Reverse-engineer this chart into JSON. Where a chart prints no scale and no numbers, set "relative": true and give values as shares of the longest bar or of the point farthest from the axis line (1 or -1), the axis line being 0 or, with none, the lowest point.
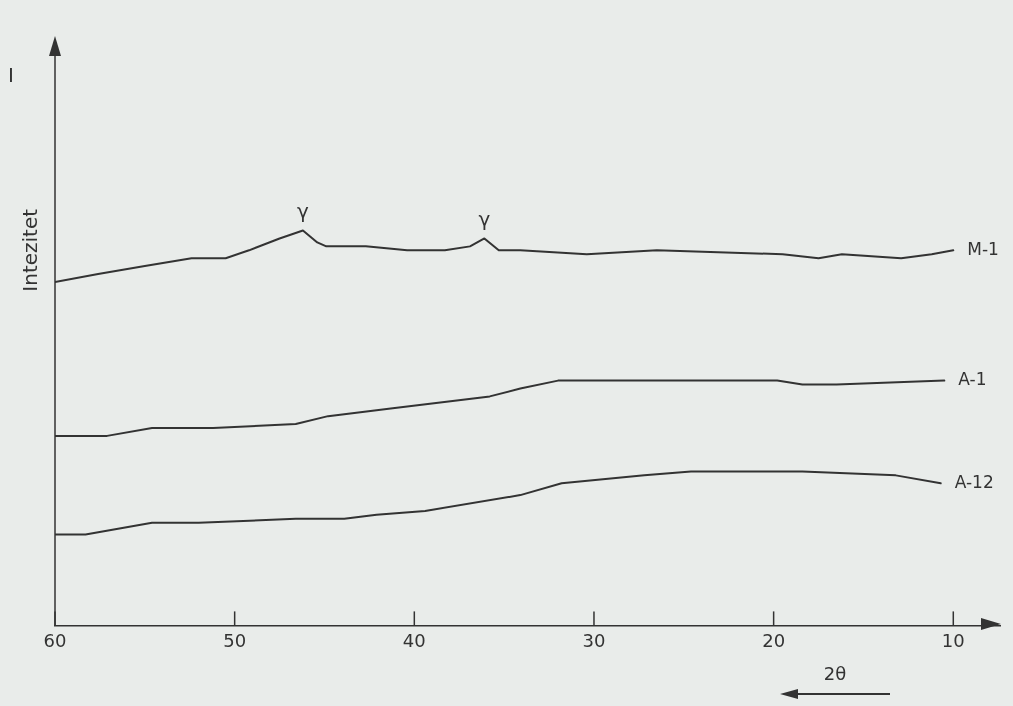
{
  "chart_data": {
    "type": "line",
    "relative": true,
    "ylabel": "Intezitet",
    "xlabel": "2θ",
    "xlim": [
      60,
      7.4
    ],
    "xticks": [
      60,
      50,
      40,
      30,
      20,
      10
    ],
    "grid": false,
    "legend": false,
    "marker": "none",
    "line_style": "solid",
    "annotations": [
      "I",
      {
        "text": "γ",
        "x": 46.2,
        "y": 1.0
      },
      {
        "text": "γ",
        "x": 36.1,
        "y": 0.98
      }
    ],
    "series": [
      {
        "name": "M-1",
        "color": "#333333",
        "x": [
          60,
          57.6,
          55.0,
          52.4,
          50.5,
          49.2,
          47.5,
          46.2,
          45.4,
          44.9,
          42.7,
          40.4,
          38.3,
          36.9,
          36.1,
          35.3,
          34.1,
          30.4,
          26.5,
          19.5,
          17.5,
          16.2,
          12.9,
          11.2,
          10
        ],
        "values": [
          0.87,
          0.89,
          0.91,
          0.93,
          0.93,
          0.95,
          0.98,
          1.0,
          0.97,
          0.96,
          0.96,
          0.95,
          0.95,
          0.96,
          0.98,
          0.95,
          0.95,
          0.94,
          0.95,
          0.94,
          0.93,
          0.94,
          0.93,
          0.94,
          0.95
        ]
      },
      {
        "name": "A-1",
        "color": "#333333",
        "x": [
          60,
          58.5,
          57.1,
          54.6,
          51.2,
          46.6,
          44.8,
          41.2,
          35.8,
          34.1,
          32.0,
          29.0,
          19.8,
          18.4,
          16.5,
          10.5
        ],
        "values": [
          0.48,
          0.48,
          0.48,
          0.5,
          0.5,
          0.51,
          0.53,
          0.55,
          0.58,
          0.6,
          0.62,
          0.62,
          0.62,
          0.61,
          0.61,
          0.62
        ]
      },
      {
        "name": "A-12",
        "color": "#333333",
        "x": [
          60,
          58.3,
          54.6,
          52.0,
          46.6,
          43.9,
          42.1,
          39.4,
          34.1,
          31.8,
          27.2,
          24.6,
          18.4,
          13.2,
          10.7
        ],
        "values": [
          0.23,
          0.23,
          0.26,
          0.26,
          0.27,
          0.27,
          0.28,
          0.29,
          0.33,
          0.36,
          0.38,
          0.39,
          0.39,
          0.38,
          0.36
        ]
      }
    ]
  }
}
